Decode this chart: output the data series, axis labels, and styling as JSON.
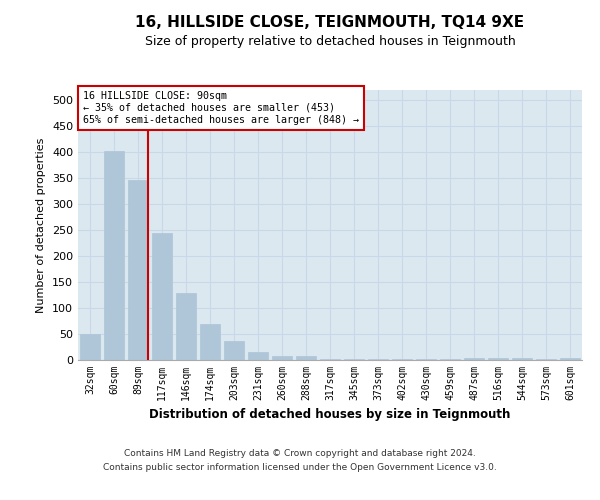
{
  "title1": "16, HILLSIDE CLOSE, TEIGNMOUTH, TQ14 9XE",
  "title2": "Size of property relative to detached houses in Teignmouth",
  "xlabel": "Distribution of detached houses by size in Teignmouth",
  "ylabel": "Number of detached properties",
  "categories": [
    "32sqm",
    "60sqm",
    "89sqm",
    "117sqm",
    "146sqm",
    "174sqm",
    "203sqm",
    "231sqm",
    "260sqm",
    "288sqm",
    "317sqm",
    "345sqm",
    "373sqm",
    "402sqm",
    "430sqm",
    "459sqm",
    "487sqm",
    "516sqm",
    "544sqm",
    "573sqm",
    "601sqm"
  ],
  "values": [
    51,
    403,
    347,
    245,
    130,
    70,
    36,
    16,
    7,
    7,
    2,
    2,
    2,
    2,
    2,
    2,
    4,
    4,
    3,
    2,
    3
  ],
  "bar_color": "#aec6d8",
  "bar_edgecolor": "#aec6d8",
  "grid_color": "#c8d8e8",
  "bg_color": "#dce8f0",
  "vline_color": "#cc0000",
  "annotation_title": "16 HILLSIDE CLOSE: 90sqm",
  "annotation_line2": "← 35% of detached houses are smaller (453)",
  "annotation_line3": "65% of semi-detached houses are larger (848) →",
  "annotation_box_color": "#ffffff",
  "annotation_box_edgecolor": "#cc0000",
  "ylim": [
    0,
    520
  ],
  "yticks": [
    0,
    50,
    100,
    150,
    200,
    250,
    300,
    350,
    400,
    450,
    500
  ],
  "footer1": "Contains HM Land Registry data © Crown copyright and database right 2024.",
  "footer2": "Contains public sector information licensed under the Open Government Licence v3.0."
}
